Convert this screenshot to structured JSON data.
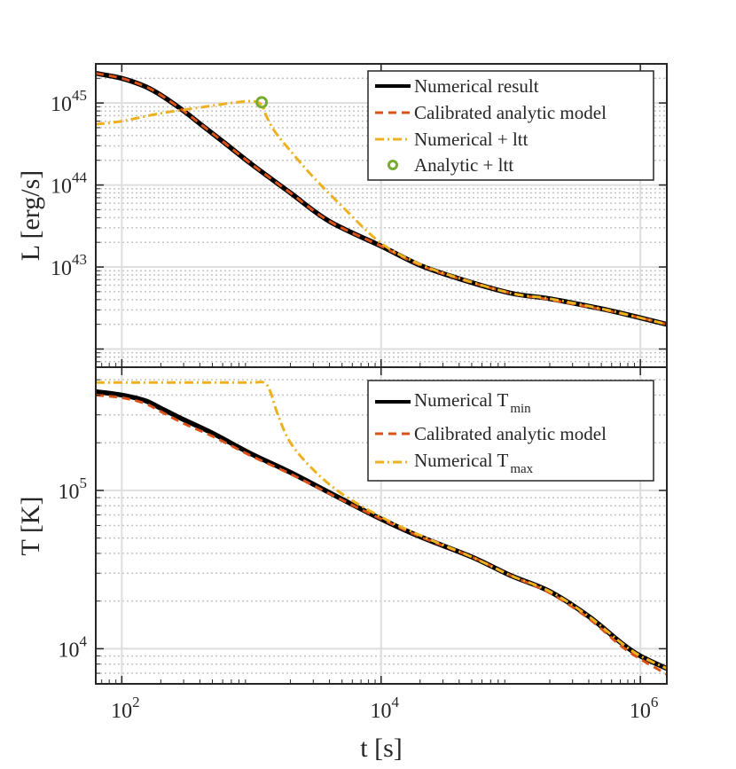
{
  "colors": {
    "numerical": "#000000",
    "analytic": "#D95319",
    "ltt": "#EDB120",
    "point": "#77AC30",
    "grid_major": "#dedede",
    "grid_minor": "#c4c4c4",
    "axis": "#262626"
  },
  "chart_data": [
    {
      "type": "line",
      "ylabel": "L [erg/s]",
      "xscale": "log",
      "yscale": "log",
      "xlim": [
        63,
        1600000
      ],
      "ylim": [
        600000000000000000000000000000000000000000,
        3000000000000000000000000000000000000000000000
      ],
      "yticks": [
        {
          "value": 10000000000000000000000000000000000000000000,
          "base": "10",
          "exp": "43"
        },
        {
          "value": 100000000000000000000000000000000000000000000,
          "base": "10",
          "exp": "44"
        },
        {
          "value": 1000000000000000000000000000000000000000000000,
          "base": "10",
          "exp": "45"
        }
      ],
      "legend_position": "top-right",
      "series": [
        {
          "name": "Numerical result",
          "style": "solid",
          "color_key": "numerical",
          "x": [
            63,
            100,
            150,
            200,
            300,
            400,
            600,
            1000,
            2000,
            4000,
            10000,
            20000,
            40000,
            100000,
            200000,
            500000,
            1000000,
            1600000
          ],
          "y": [
            2.3e+45,
            2e+45,
            1.6e+45,
            1.25e+45,
            8e+44,
            5.6e+44,
            3.4e+44,
            1.8e+44,
            8e+43,
            3.6e+43,
            1.8e+43,
            1.05e+43,
            7.2e+42,
            4.8e+42,
            4.1e+42,
            3.1e+42,
            2.4e+42,
            2e+42
          ]
        },
        {
          "name": "Calibrated analytic model",
          "style": "dashed",
          "color_key": "analytic",
          "x": [
            63,
            100,
            150,
            200,
            300,
            400,
            600,
            1000,
            2000,
            4000,
            10000,
            20000,
            40000,
            100000,
            200000,
            500000,
            1000000,
            1600000
          ],
          "y": [
            2.3e+45,
            2e+45,
            1.6e+45,
            1.25e+45,
            8e+44,
            5.6e+44,
            3.4e+44,
            1.8e+44,
            8e+43,
            3.6e+43,
            1.8e+43,
            1.05e+43,
            7.2e+42,
            4.8e+42,
            4e+42,
            3.05e+42,
            2.4e+42,
            2e+42
          ]
        },
        {
          "name": "Numerical + ltt",
          "style": "dashdot",
          "color_key": "ltt",
          "x": [
            63,
            100,
            200,
            400,
            700,
            1000,
            1200,
            1300,
            1500,
            2000,
            3000,
            5000,
            10000,
            20000,
            40000,
            100000,
            200000,
            500000,
            1000000,
            1600000
          ],
          "y": [
            5.5e+44,
            6e+44,
            7.5e+44,
            8.8e+44,
            1e+45,
            1.05e+45,
            9.5e+44,
            7e+44,
            4.6e+44,
            2.6e+44,
            1.25e+44,
            5.5e+43,
            1.95e+43,
            1.08e+43,
            7.3e+42,
            4.8e+42,
            4.1e+42,
            3.1e+42,
            2.4e+42,
            2e+42
          ]
        },
        {
          "name": "Analytic + ltt",
          "style": "marker",
          "color_key": "point",
          "x": [
            1200
          ],
          "y": [
            1.02e+45
          ]
        }
      ]
    },
    {
      "type": "line",
      "xlabel": "t [s]",
      "ylabel": "T [K]",
      "xscale": "log",
      "yscale": "log",
      "xlim": [
        63,
        1600000
      ],
      "ylim": [
        6000,
        600000
      ],
      "xticks": [
        {
          "value": 100,
          "base": "10",
          "exp": "2"
        },
        {
          "value": 10000,
          "base": "10",
          "exp": "4"
        },
        {
          "value": 1000000,
          "base": "10",
          "exp": "6"
        }
      ],
      "yticks": [
        {
          "value": 10000,
          "base": "10",
          "exp": "4"
        },
        {
          "value": 100000,
          "base": "10",
          "exp": "5"
        }
      ],
      "legend_position": "top-right",
      "legend_labels": [
        {
          "text": "Numerical T",
          "sub": "min"
        },
        {
          "text": "Calibrated analytic model",
          "sub": ""
        },
        {
          "text": "Numerical T",
          "sub": "max"
        }
      ],
      "series": [
        {
          "name": "Numerical Tmin",
          "style": "solid",
          "color_key": "numerical",
          "x": [
            63,
            100,
            150,
            200,
            300,
            500,
            1000,
            2000,
            5000,
            10000,
            20000,
            50000,
            100000,
            200000,
            400000,
            700000,
            1000000,
            1600000
          ],
          "y": [
            420000,
            400000,
            370000,
            330000,
            280000,
            230000,
            170000,
            130000,
            88000,
            66000,
            51000,
            38000,
            29000,
            23000,
            16000,
            11000,
            9000,
            7500
          ]
        },
        {
          "name": "Calibrated analytic model",
          "style": "dashed",
          "color_key": "analytic",
          "x": [
            63,
            100,
            150,
            200,
            300,
            500,
            1000,
            2000,
            5000,
            10000,
            20000,
            50000,
            100000,
            200000,
            400000,
            700000,
            1000000,
            1600000
          ],
          "y": [
            400000,
            385000,
            355000,
            315000,
            265000,
            220000,
            165000,
            127000,
            87000,
            66000,
            51000,
            38000,
            29000,
            22500,
            15500,
            10500,
            8600,
            6900
          ]
        },
        {
          "name": "Numerical Tmax",
          "style": "dashdot",
          "color_key": "ltt",
          "x": [
            63,
            100,
            500,
            1000,
            1250,
            1400,
            1600,
            2000,
            3000,
            5000,
            10000,
            20000,
            50000,
            100000,
            200000,
            400000,
            700000,
            1000000,
            1600000
          ],
          "y": [
            480000,
            480000,
            480000,
            480000,
            480000,
            420000,
            300000,
            200000,
            135000,
            95000,
            68000,
            52000,
            38000,
            29000,
            23000,
            16000,
            11000,
            9000,
            7500
          ]
        }
      ]
    }
  ]
}
